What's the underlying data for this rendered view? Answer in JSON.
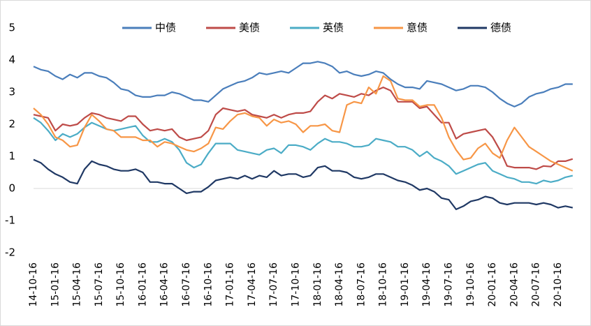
{
  "chart_data": {
    "type": "line",
    "categories": [
      "14-10-16",
      null,
      null,
      "15-01-16",
      null,
      null,
      "15-04-16",
      null,
      null,
      "15-07-16",
      null,
      null,
      "15-10-16",
      null,
      null,
      "16-01-16",
      null,
      null,
      "16-04-16",
      null,
      null,
      "16-07-16",
      null,
      null,
      "16-10-16",
      null,
      null,
      "17-01-16",
      null,
      null,
      "17-04-16",
      null,
      null,
      "17-07-16",
      null,
      null,
      "17-10-16",
      null,
      null,
      "18-01-16",
      null,
      null,
      "18-04-16",
      null,
      null,
      "18-07-16",
      null,
      null,
      "18-10-16",
      null,
      null,
      "19-01-16",
      null,
      null,
      "19-04-16",
      null,
      null,
      "19-07-16",
      null,
      null,
      "19-10-16",
      null,
      null,
      "20-01-16",
      null,
      null,
      "20-04-16",
      null,
      null,
      "20-07-16",
      null,
      null,
      "20-10-16",
      null,
      null
    ],
    "series": [
      {
        "name": "中债",
        "color": "#4a7ebb",
        "values": [
          3.8,
          3.7,
          3.65,
          3.5,
          3.4,
          3.55,
          3.45,
          3.6,
          3.6,
          3.5,
          3.45,
          3.3,
          3.1,
          3.05,
          2.9,
          2.85,
          2.85,
          2.9,
          2.9,
          3.0,
          2.95,
          2.85,
          2.75,
          2.75,
          2.7,
          2.9,
          3.1,
          3.2,
          3.3,
          3.35,
          3.45,
          3.6,
          3.55,
          3.6,
          3.65,
          3.6,
          3.75,
          3.9,
          3.9,
          3.95,
          3.9,
          3.8,
          3.6,
          3.65,
          3.55,
          3.5,
          3.55,
          3.65,
          3.6,
          3.4,
          3.25,
          3.15,
          3.15,
          3.1,
          3.35,
          3.3,
          3.25,
          3.15,
          3.05,
          3.1,
          3.2,
          3.2,
          3.15,
          3.0,
          2.8,
          2.65,
          2.55,
          2.65,
          2.85,
          2.95,
          3.0,
          3.1,
          3.15,
          3.25,
          3.25
        ]
      },
      {
        "name": "美债",
        "color": "#be4b48",
        "values": [
          2.3,
          2.25,
          2.2,
          1.8,
          2.0,
          1.95,
          2.0,
          2.2,
          2.35,
          2.3,
          2.2,
          2.15,
          2.1,
          2.25,
          2.25,
          2.0,
          1.8,
          1.85,
          1.8,
          1.85,
          1.6,
          1.5,
          1.55,
          1.6,
          1.8,
          2.3,
          2.5,
          2.45,
          2.4,
          2.45,
          2.3,
          2.25,
          2.2,
          2.3,
          2.2,
          2.3,
          2.35,
          2.35,
          2.4,
          2.7,
          2.9,
          2.8,
          2.95,
          2.9,
          2.85,
          2.95,
          2.9,
          3.05,
          3.15,
          3.05,
          2.7,
          2.7,
          2.7,
          2.5,
          2.55,
          2.3,
          2.05,
          2.05,
          1.55,
          1.7,
          1.75,
          1.8,
          1.85,
          1.6,
          1.2,
          0.7,
          0.65,
          0.65,
          0.65,
          0.6,
          0.7,
          0.68,
          0.85,
          0.85,
          0.92
        ]
      },
      {
        "name": "英债",
        "color": "#4bacc6",
        "values": [
          2.2,
          2.05,
          1.8,
          1.5,
          1.7,
          1.6,
          1.7,
          1.9,
          2.05,
          1.95,
          1.85,
          1.8,
          1.85,
          1.9,
          1.95,
          1.65,
          1.45,
          1.45,
          1.55,
          1.45,
          1.2,
          0.8,
          0.65,
          0.75,
          1.1,
          1.4,
          1.4,
          1.4,
          1.2,
          1.15,
          1.1,
          1.05,
          1.2,
          1.25,
          1.1,
          1.35,
          1.35,
          1.3,
          1.2,
          1.4,
          1.55,
          1.45,
          1.45,
          1.4,
          1.3,
          1.3,
          1.35,
          1.55,
          1.5,
          1.45,
          1.3,
          1.3,
          1.2,
          1.0,
          1.15,
          0.95,
          0.85,
          0.7,
          0.45,
          0.55,
          0.65,
          0.75,
          0.8,
          0.55,
          0.45,
          0.35,
          0.3,
          0.2,
          0.2,
          0.15,
          0.25,
          0.2,
          0.25,
          0.35,
          0.4
        ]
      },
      {
        "name": "意债",
        "color": "#f79646",
        "values": [
          2.5,
          2.3,
          2.0,
          1.6,
          1.5,
          1.3,
          1.35,
          1.9,
          2.3,
          2.1,
          1.85,
          1.8,
          1.6,
          1.6,
          1.6,
          1.5,
          1.5,
          1.3,
          1.45,
          1.4,
          1.3,
          1.2,
          1.15,
          1.25,
          1.4,
          1.9,
          1.85,
          2.1,
          2.3,
          2.35,
          2.25,
          2.2,
          1.95,
          2.15,
          2.05,
          2.1,
          2.0,
          1.75,
          1.95,
          1.95,
          2.0,
          1.8,
          1.75,
          2.6,
          2.7,
          2.65,
          3.15,
          2.95,
          3.5,
          3.35,
          2.8,
          2.75,
          2.75,
          2.55,
          2.6,
          2.6,
          2.2,
          1.6,
          1.2,
          0.9,
          0.95,
          1.25,
          1.4,
          1.1,
          0.95,
          1.5,
          1.9,
          1.6,
          1.3,
          1.15,
          1.0,
          0.85,
          0.75,
          0.65,
          0.55
        ]
      },
      {
        "name": "德债",
        "color": "#1f3864",
        "values": [
          0.9,
          0.8,
          0.6,
          0.45,
          0.35,
          0.2,
          0.15,
          0.6,
          0.85,
          0.75,
          0.7,
          0.6,
          0.55,
          0.55,
          0.6,
          0.5,
          0.2,
          0.2,
          0.15,
          0.15,
          0.0,
          -0.15,
          -0.1,
          -0.1,
          0.05,
          0.25,
          0.3,
          0.35,
          0.3,
          0.4,
          0.3,
          0.4,
          0.35,
          0.55,
          0.4,
          0.45,
          0.45,
          0.35,
          0.4,
          0.65,
          0.7,
          0.55,
          0.55,
          0.5,
          0.35,
          0.3,
          0.35,
          0.45,
          0.45,
          0.35,
          0.25,
          0.2,
          0.1,
          -0.05,
          0.0,
          -0.1,
          -0.3,
          -0.35,
          -0.65,
          -0.55,
          -0.4,
          -0.35,
          -0.25,
          -0.3,
          -0.45,
          -0.5,
          -0.45,
          -0.45,
          -0.45,
          -0.5,
          -0.45,
          -0.5,
          -0.6,
          -0.55,
          -0.6
        ]
      }
    ],
    "ylim": [
      -2,
      5
    ],
    "yticks": [
      -2,
      -1,
      0,
      1,
      2,
      3,
      4,
      5
    ],
    "legend": "top"
  }
}
